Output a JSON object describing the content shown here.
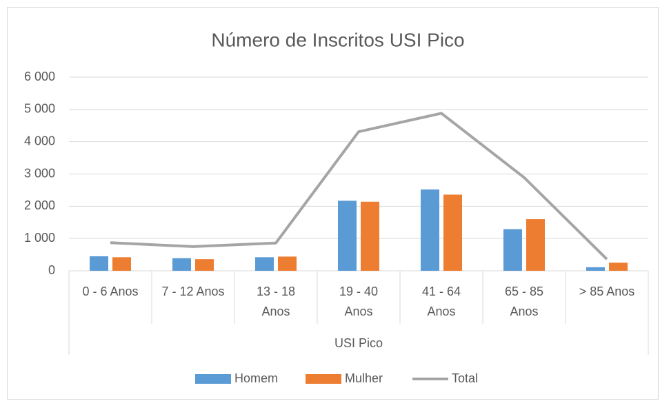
{
  "chart_data": {
    "type": "bar",
    "title": "Número de Inscritos USI Pico",
    "x_label": "USI Pico",
    "categories": [
      "0 - 6 Anos",
      "7 - 12 Anos",
      "13 - 18 Anos",
      "19 - 40 Anos",
      "41 - 64 Anos",
      "65 - 85 Anos",
      "> 85 Anos"
    ],
    "series": [
      {
        "name": "Homem",
        "type": "bar",
        "color": "#5b9bd5",
        "values": [
          450,
          390,
          420,
          2170,
          2520,
          1290,
          110
        ]
      },
      {
        "name": "Mulher",
        "type": "bar",
        "color": "#ed7d31",
        "values": [
          420,
          360,
          440,
          2140,
          2360,
          1600,
          250
        ]
      },
      {
        "name": "Total",
        "type": "line",
        "color": "#a5a5a5",
        "values": [
          870,
          750,
          860,
          4310,
          4880,
          2890,
          360
        ]
      }
    ],
    "ylim": [
      0,
      6000
    ],
    "yticks": [
      0,
      {
        "value": 1000,
        "label": "1 000"
      },
      {
        "value": 2000,
        "label": "2 000"
      },
      {
        "value": 3000,
        "label": "3 000"
      },
      {
        "value": 4000,
        "label": "4 000"
      },
      {
        "value": 5000,
        "label": "5 000"
      },
      {
        "value": 6000,
        "label": "6 000"
      }
    ],
    "grid": true,
    "legend": "bottom"
  }
}
